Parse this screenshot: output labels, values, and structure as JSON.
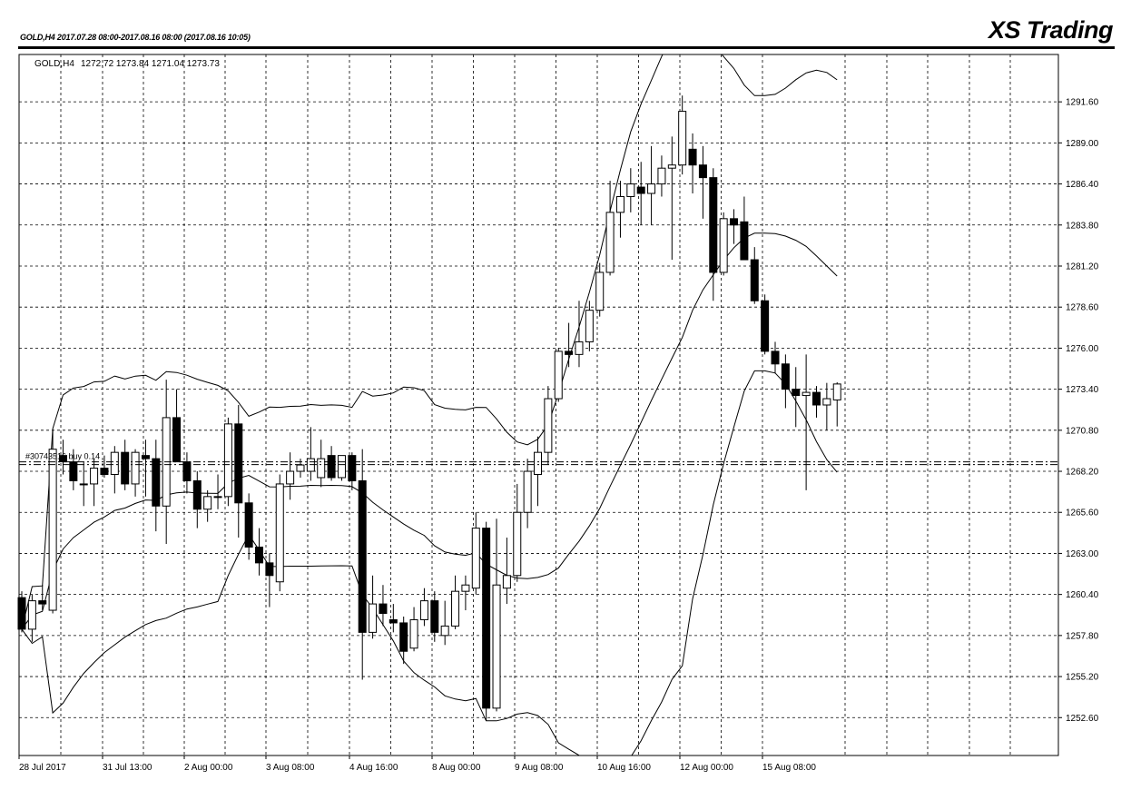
{
  "header": {
    "left_caption": "GOLD,H4  2017.07.28 08:00-2017.08.16 08:00  (2017.08.16 10:05)",
    "brand": "XS Trading"
  },
  "chart_data": {
    "type": "candlestick",
    "symbol_label": "GOLD,H4",
    "ohlc_label": "1272.72 1273.84 1271.04 1273.73",
    "level_label": "#30743516 buy 0.14",
    "level_price": 1268.8,
    "ylim": [
      1250.2,
      1294.6
    ],
    "y_ticks": [
      "1291.60",
      "1289.00",
      "1286.40",
      "1283.80",
      "1281.20",
      "1278.60",
      "1276.00",
      "1273.40",
      "1270.80",
      "1268.20",
      "1265.60",
      "1263.00",
      "1260.40",
      "1257.80",
      "1255.20",
      "1252.60"
    ],
    "x_ticks": [
      "28 Jul 2017",
      "31 Jul 13:00",
      "2 Aug 00:00",
      "3 Aug 08:00",
      "4 Aug 16:00",
      "8 Aug 00:00",
      "9 Aug 08:00",
      "10 Aug 16:00",
      "12 Aug 00:00",
      "15 Aug 08:00"
    ],
    "grid": true,
    "candles": [
      [
        1260.2,
        1260.6,
        1258.0,
        1258.2
      ],
      [
        1258.2,
        1260.4,
        1257.4,
        1260.0
      ],
      [
        1260.0,
        1261.0,
        1259.4,
        1259.8
      ],
      [
        1259.4,
        1270.8,
        1259.2,
        1269.6
      ],
      [
        1269.2,
        1270.2,
        1268.0,
        1268.8
      ],
      [
        1268.8,
        1269.6,
        1267.0,
        1267.6
      ],
      [
        1267.4,
        1268.8,
        1266.0,
        1267.4
      ],
      [
        1267.4,
        1269.0,
        1266.0,
        1268.4
      ],
      [
        1268.4,
        1269.2,
        1267.8,
        1268.0
      ],
      [
        1268.0,
        1269.8,
        1266.8,
        1269.4
      ],
      [
        1269.4,
        1270.2,
        1267.0,
        1267.4
      ],
      [
        1267.4,
        1269.6,
        1266.6,
        1269.4
      ],
      [
        1269.2,
        1270.2,
        1266.6,
        1269.0
      ],
      [
        1269.0,
        1270.2,
        1264.4,
        1266.0
      ],
      [
        1266.0,
        1274.0,
        1263.6,
        1271.6
      ],
      [
        1271.6,
        1273.4,
        1268.8,
        1268.8
      ],
      [
        1268.8,
        1269.4,
        1266.8,
        1267.6
      ],
      [
        1267.6,
        1268.2,
        1264.6,
        1265.8
      ],
      [
        1265.8,
        1267.0,
        1265.0,
        1266.6
      ],
      [
        1266.6,
        1268.0,
        1265.8,
        1266.6
      ],
      [
        1266.6,
        1271.6,
        1266.0,
        1271.2
      ],
      [
        1271.2,
        1272.4,
        1264.0,
        1266.2
      ],
      [
        1266.2,
        1266.8,
        1262.6,
        1263.4
      ],
      [
        1263.4,
        1264.6,
        1261.6,
        1262.4
      ],
      [
        1262.4,
        1263.0,
        1259.6,
        1261.6
      ],
      [
        1261.2,
        1268.0,
        1260.6,
        1267.4
      ],
      [
        1267.4,
        1269.4,
        1266.4,
        1268.2
      ],
      [
        1268.2,
        1269.0,
        1267.8,
        1268.6
      ],
      [
        1268.2,
        1271.0,
        1267.6,
        1269.0
      ],
      [
        1267.8,
        1270.2,
        1267.2,
        1269.0
      ],
      [
        1269.2,
        1269.8,
        1267.6,
        1267.8
      ],
      [
        1267.8,
        1269.2,
        1267.6,
        1269.2
      ],
      [
        1269.2,
        1269.4,
        1267.0,
        1267.6
      ],
      [
        1267.6,
        1269.6,
        1255.0,
        1258.0
      ],
      [
        1258.0,
        1261.6,
        1257.6,
        1259.8
      ],
      [
        1259.8,
        1261.0,
        1258.4,
        1259.2
      ],
      [
        1258.8,
        1259.8,
        1258.0,
        1258.6
      ],
      [
        1258.6,
        1259.0,
        1256.0,
        1256.8
      ],
      [
        1257.0,
        1259.6,
        1256.8,
        1258.8
      ],
      [
        1258.8,
        1260.8,
        1258.4,
        1260.0
      ],
      [
        1260.0,
        1260.6,
        1257.4,
        1258.0
      ],
      [
        1257.8,
        1260.0,
        1257.2,
        1258.4
      ],
      [
        1258.4,
        1261.6,
        1258.2,
        1260.6
      ],
      [
        1260.6,
        1261.6,
        1259.4,
        1261.0
      ],
      [
        1260.8,
        1265.6,
        1260.4,
        1264.6
      ],
      [
        1264.6,
        1265.0,
        1252.4,
        1253.2
      ],
      [
        1253.2,
        1265.2,
        1253.0,
        1261.0
      ],
      [
        1260.8,
        1264.0,
        1259.8,
        1261.6
      ],
      [
        1261.6,
        1267.4,
        1261.2,
        1265.6
      ],
      [
        1265.6,
        1269.0,
        1264.6,
        1268.2
      ],
      [
        1268.0,
        1270.4,
        1266.0,
        1269.4
      ],
      [
        1269.4,
        1273.6,
        1268.6,
        1272.8
      ],
      [
        1272.8,
        1276.0,
        1272.6,
        1275.8
      ],
      [
        1275.8,
        1277.6,
        1274.8,
        1275.6
      ],
      [
        1275.6,
        1279.0,
        1274.8,
        1276.4
      ],
      [
        1276.4,
        1279.0,
        1275.8,
        1278.4
      ],
      [
        1278.4,
        1281.4,
        1278.0,
        1280.8
      ],
      [
        1280.8,
        1286.6,
        1280.6,
        1284.6
      ],
      [
        1284.6,
        1286.6,
        1283.0,
        1285.6
      ],
      [
        1285.6,
        1287.4,
        1284.6,
        1286.4
      ],
      [
        1286.2,
        1287.8,
        1283.8,
        1285.8
      ],
      [
        1285.8,
        1288.8,
        1283.8,
        1286.4
      ],
      [
        1286.4,
        1288.2,
        1285.6,
        1287.4
      ],
      [
        1287.4,
        1289.4,
        1281.6,
        1287.6
      ],
      [
        1287.6,
        1292.0,
        1287.0,
        1291.0
      ],
      [
        1288.6,
        1289.6,
        1285.8,
        1287.6
      ],
      [
        1287.6,
        1288.8,
        1284.2,
        1286.8
      ],
      [
        1286.8,
        1287.4,
        1279.0,
        1280.8
      ],
      [
        1280.8,
        1284.6,
        1280.6,
        1284.2
      ],
      [
        1284.2,
        1284.8,
        1282.6,
        1283.8
      ],
      [
        1284.0,
        1285.6,
        1281.8,
        1281.6
      ],
      [
        1281.6,
        1282.4,
        1278.8,
        1279.0
      ],
      [
        1279.0,
        1279.4,
        1275.6,
        1275.8
      ],
      [
        1275.8,
        1276.4,
        1274.4,
        1275.0
      ],
      [
        1275.0,
        1275.6,
        1272.2,
        1273.4
      ],
      [
        1273.4,
        1274.8,
        1271.0,
        1273.0
      ],
      [
        1273.0,
        1275.6,
        1267.0,
        1273.2
      ],
      [
        1273.2,
        1273.6,
        1271.6,
        1272.4
      ],
      [
        1272.4,
        1273.8,
        1270.8,
        1272.8
      ],
      [
        1272.72,
        1273.84,
        1271.04,
        1273.73
      ]
    ]
  }
}
